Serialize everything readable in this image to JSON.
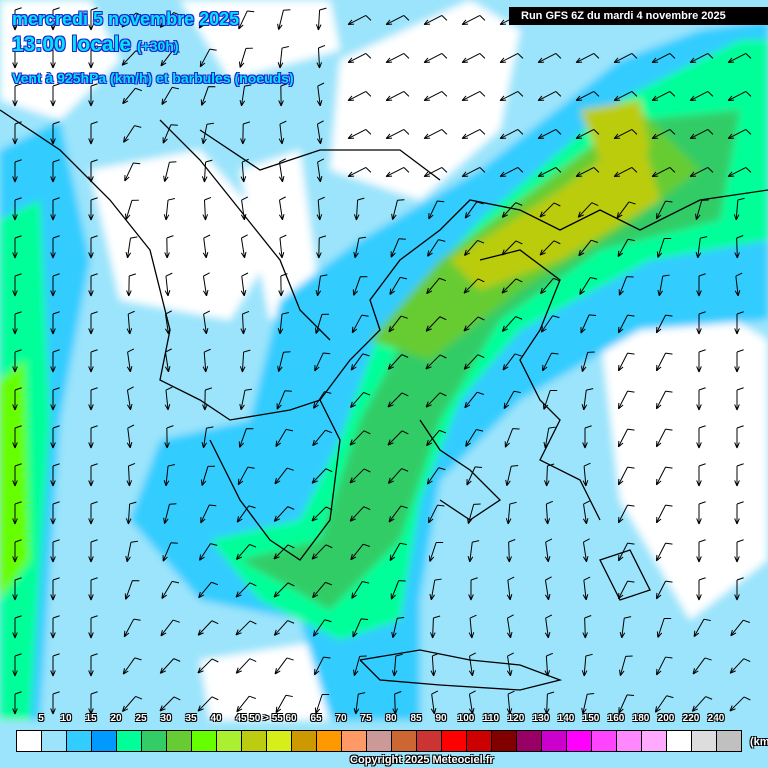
{
  "header": {
    "date": "mercredi 5 novembre 2025",
    "time": "13:00 locale",
    "lead": "(+30h)",
    "parameter": "Vent à 925hPa (km/h) et barbules (noeuds)",
    "run": "Run GFS 6Z du mardi 4 novembre 2025"
  },
  "legend": {
    "labels": [
      "5",
      "10",
      "15",
      "20",
      "25",
      "30",
      "35",
      "40",
      "45",
      "50 > 55",
      "60",
      "65",
      "70",
      "75",
      "80",
      "85",
      "90",
      "100",
      "110",
      "120",
      "130",
      "140",
      "150",
      "160",
      "180",
      "200",
      "220",
      "240"
    ],
    "colors": [
      "#ffffff",
      "#9be4fb",
      "#33ccff",
      "#0099ff",
      "#00ff99",
      "#33cc66",
      "#66cc33",
      "#66ff00",
      "#a8f030",
      "#bbcc11",
      "#d8ee18",
      "#cc9900",
      "#ff9900",
      "#ff9966",
      "#cc9999",
      "#cc6633",
      "#cc3333",
      "#ff0000",
      "#cc0000",
      "#800000",
      "#990066",
      "#cc00cc",
      "#ff00ff",
      "#ff44ff",
      "#ff88ff",
      "#ffaaff",
      "#ffffff",
      "#dddddd",
      "#c0c0c0"
    ],
    "unit": "(km"
  },
  "footer": {
    "copyright": "Copyright 2025 Meteociel.fr"
  }
}
